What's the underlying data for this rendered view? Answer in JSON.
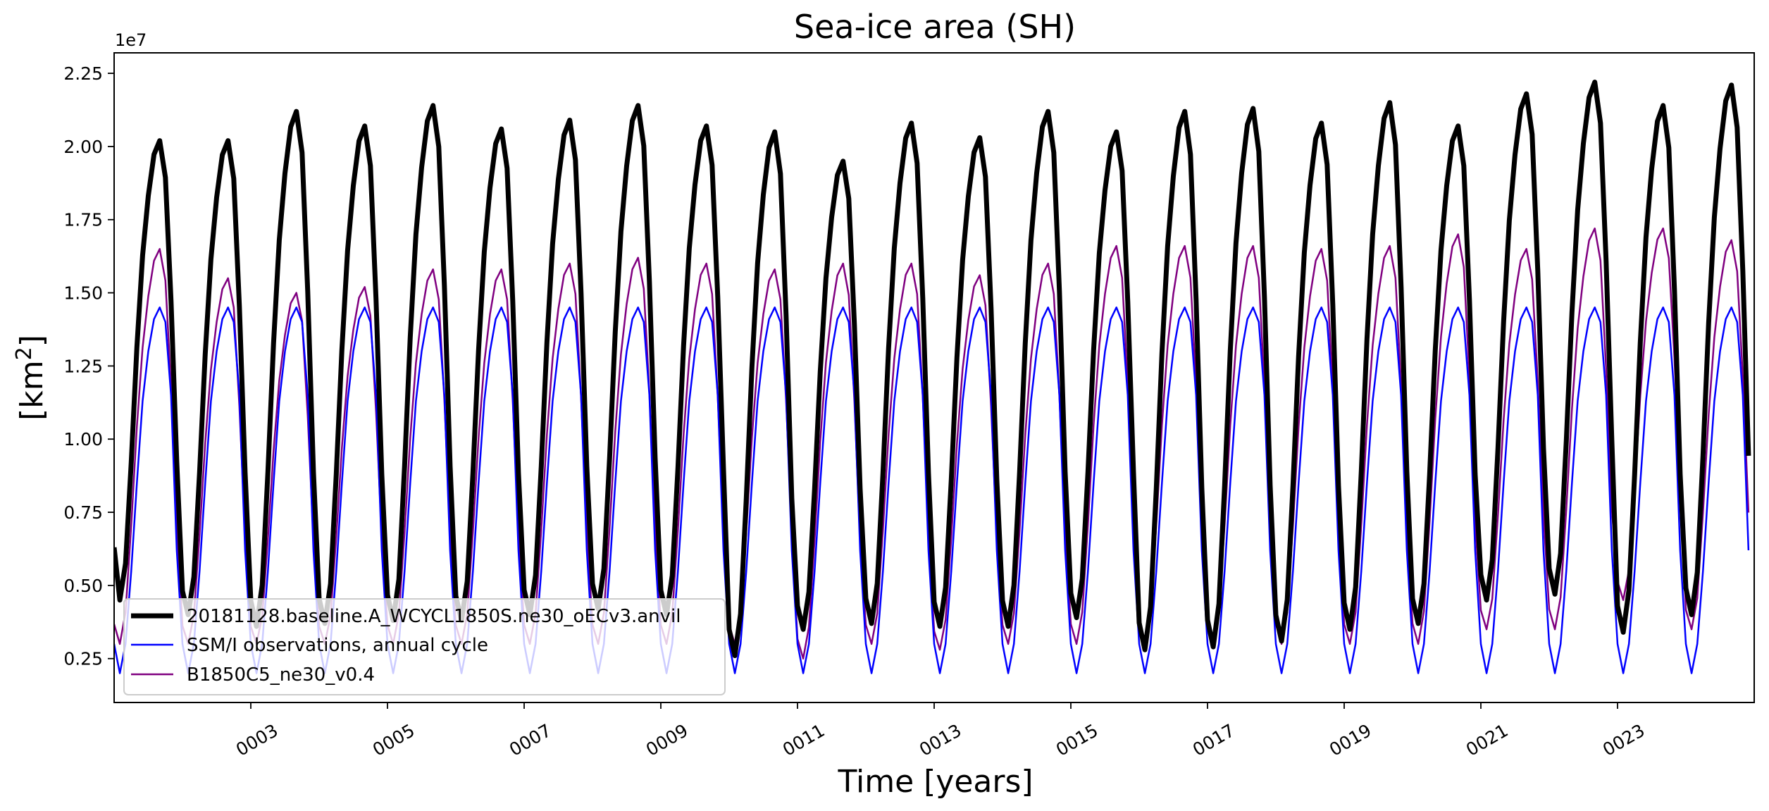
{
  "chart_data": {
    "type": "line",
    "title": "Sea-ice area (SH)",
    "xlabel": "Time [years]",
    "ylabel_main": "[km",
    "ylabel_sup": "2",
    "ylabel_close": "]",
    "offset_text": "1e7",
    "xlim": [
      1.0,
      25.0
    ],
    "ylim": [
      0.1,
      2.32
    ],
    "x_ticks": [
      3,
      5,
      7,
      9,
      11,
      13,
      15,
      17,
      19,
      21,
      23
    ],
    "x_tick_labels": [
      "0003",
      "0005",
      "0007",
      "0009",
      "0011",
      "0013",
      "0015",
      "0017",
      "0019",
      "0021",
      "0023"
    ],
    "y_ticks": [
      0.25,
      0.5,
      0.75,
      1.0,
      1.25,
      1.5,
      1.75,
      2.0,
      2.25
    ],
    "y_tick_labels": [
      "0.25",
      "0.50",
      "0.75",
      "1.00",
      "1.25",
      "1.50",
      "1.75",
      "2.00",
      "2.25"
    ],
    "grid": false,
    "legend_position": "lower-left",
    "months_per_year": 12,
    "start_year": 1,
    "series": [
      {
        "name": "20181128.baseline.A_WCYCL1850S.ne30_oECv3.anvil",
        "color": "#000000",
        "style": "thick",
        "annual_min": [
          0.45,
          0.4,
          0.36,
          0.37,
          0.38,
          0.38,
          0.4,
          0.42,
          0.4,
          0.26,
          0.35,
          0.37,
          0.36,
          0.36,
          0.39,
          0.28,
          0.29,
          0.31,
          0.35,
          0.37,
          0.45,
          0.47,
          0.34,
          0.4
        ],
        "annual_max": [
          2.02,
          2.02,
          2.12,
          2.07,
          2.14,
          2.06,
          2.09,
          2.14,
          2.07,
          2.05,
          1.95,
          2.08,
          2.03,
          2.12,
          2.05,
          2.12,
          2.13,
          2.08,
          2.15,
          2.07,
          2.18,
          2.22,
          2.14,
          2.21
        ],
        "first_value": 0.63
      },
      {
        "name": "SSM/I observations, annual cycle",
        "color": "#0000ff",
        "style": "thin",
        "annual_cycle": [
          0.3,
          0.2,
          0.3,
          0.55,
          0.85,
          1.13,
          1.3,
          1.41,
          1.45,
          1.4,
          1.15,
          0.62
        ]
      },
      {
        "name": "B1850C5_ne30_v0.4",
        "color": "#800080",
        "style": "thin",
        "annual_min": [
          0.3,
          0.3,
          0.3,
          0.3,
          0.3,
          0.3,
          0.3,
          0.3,
          0.3,
          0.3,
          0.25,
          0.3,
          0.28,
          0.3,
          0.3,
          0.3,
          0.3,
          0.3,
          0.3,
          0.3,
          0.35,
          0.35,
          0.45,
          0.35
        ],
        "annual_max": [
          1.65,
          1.55,
          1.5,
          1.52,
          1.58,
          1.58,
          1.6,
          1.62,
          1.6,
          1.58,
          1.6,
          1.6,
          1.56,
          1.6,
          1.66,
          1.66,
          1.66,
          1.65,
          1.66,
          1.7,
          1.65,
          1.72,
          1.72,
          1.68
        ]
      }
    ]
  }
}
